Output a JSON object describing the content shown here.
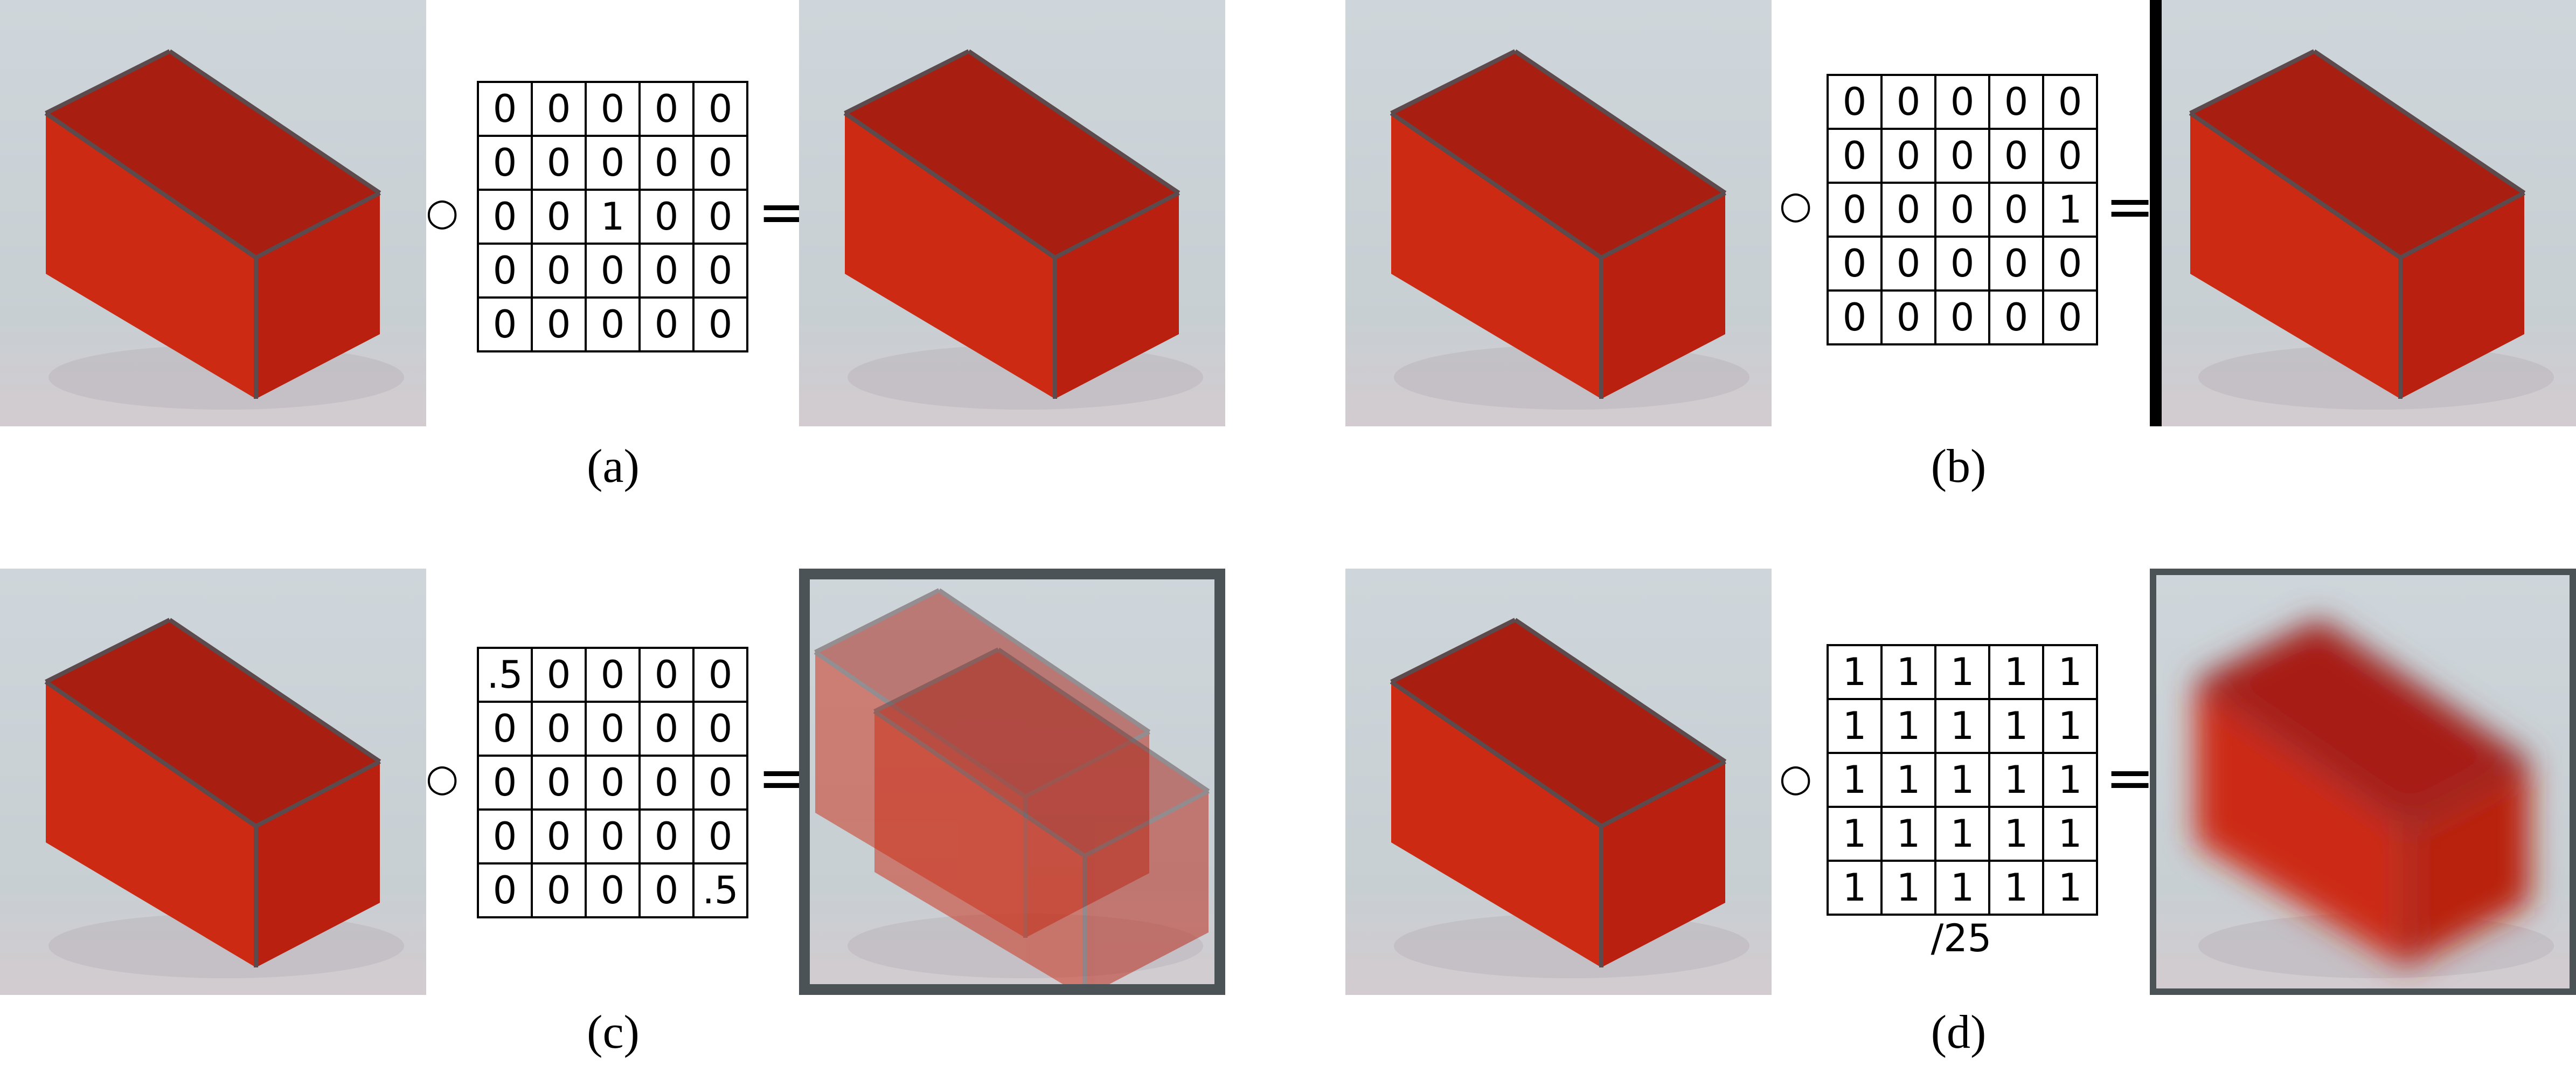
{
  "panels": [
    {
      "id": "a",
      "caption": "(a)",
      "kernel": [
        [
          "0",
          "0",
          "0",
          "0",
          "0"
        ],
        [
          "0",
          "0",
          "0",
          "0",
          "0"
        ],
        [
          "0",
          "0",
          "1",
          "0",
          "0"
        ],
        [
          "0",
          "0",
          "0",
          "0",
          "0"
        ],
        [
          "0",
          "0",
          "0",
          "0",
          "0"
        ]
      ],
      "divisor": "",
      "result_effect": "identity"
    },
    {
      "id": "b",
      "caption": "(b)",
      "kernel": [
        [
          "0",
          "0",
          "0",
          "0",
          "0"
        ],
        [
          "0",
          "0",
          "0",
          "0",
          "0"
        ],
        [
          "0",
          "0",
          "0",
          "0",
          "1"
        ],
        [
          "0",
          "0",
          "0",
          "0",
          "0"
        ],
        [
          "0",
          "0",
          "0",
          "0",
          "0"
        ]
      ],
      "divisor": "",
      "result_effect": "shift-left"
    },
    {
      "id": "c",
      "caption": "(c)",
      "kernel": [
        [
          ".5",
          "0",
          "0",
          "0",
          "0"
        ],
        [
          "0",
          "0",
          "0",
          "0",
          "0"
        ],
        [
          "0",
          "0",
          "0",
          "0",
          "0"
        ],
        [
          "0",
          "0",
          "0",
          "0",
          "0"
        ],
        [
          "0",
          "0",
          "0",
          "0",
          ".5"
        ]
      ],
      "divisor": "",
      "result_effect": "double-image"
    },
    {
      "id": "d",
      "caption": "(d)",
      "kernel": [
        [
          "1",
          "1",
          "1",
          "1",
          "1"
        ],
        [
          "1",
          "1",
          "1",
          "1",
          "1"
        ],
        [
          "1",
          "1",
          "1",
          "1",
          "1"
        ],
        [
          "1",
          "1",
          "1",
          "1",
          "1"
        ],
        [
          "1",
          "1",
          "1",
          "1",
          "1"
        ]
      ],
      "divisor": "/25",
      "result_effect": "box-blur"
    }
  ],
  "operators": {
    "convolution": "○",
    "equals": "="
  },
  "colors": {
    "background": "#c9d2d8",
    "box_front": "#cc2a12",
    "box_side": "#b92010",
    "box_top": "#a81f12",
    "edge": "#5c4a4c",
    "frame": "#4b5357"
  }
}
